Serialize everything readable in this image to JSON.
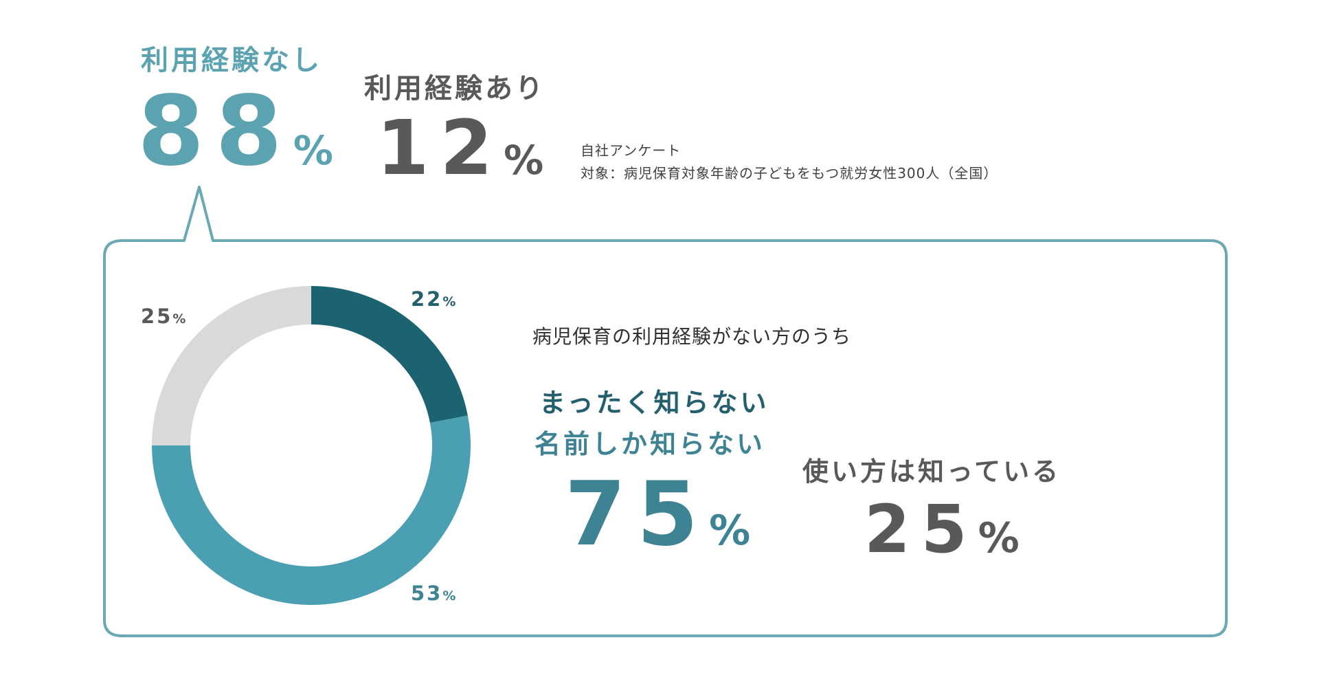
{
  "summary": {
    "no_experience": {
      "label": "利用経験なし",
      "value": "88",
      "unit": "%"
    },
    "has_experience": {
      "label": "利用経験あり",
      "value": "12",
      "unit": "%"
    }
  },
  "source": {
    "line1": "自社アンケート",
    "line2": "対象：病児保育対象年齢の子どもをもつ就労女性300人（全国）"
  },
  "detail": {
    "intro": "病児保育の利用経験がない方のうち",
    "unknown_group": {
      "line1": "まったく知らない",
      "line2": "名前しか知らない",
      "value": "75",
      "unit": "%"
    },
    "known_group": {
      "label": "使い方は知っている",
      "value": "25",
      "unit": "%"
    }
  },
  "chart_data": {
    "type": "pie",
    "variant": "donut",
    "slices": [
      {
        "value": 22,
        "label": "22",
        "unit": "%",
        "color": "#1c6372"
      },
      {
        "value": 53,
        "label": "53",
        "unit": "%",
        "color": "#4a9fb2"
      },
      {
        "value": 25,
        "label": "25",
        "unit": "%",
        "color": "#d9d9d9"
      }
    ]
  },
  "colors": {
    "frame": "#6aa8b4",
    "teal_light": "#5ca3b2",
    "teal_mid": "#3d8393",
    "teal_dark": "#245f6d",
    "gray": "#595959"
  }
}
